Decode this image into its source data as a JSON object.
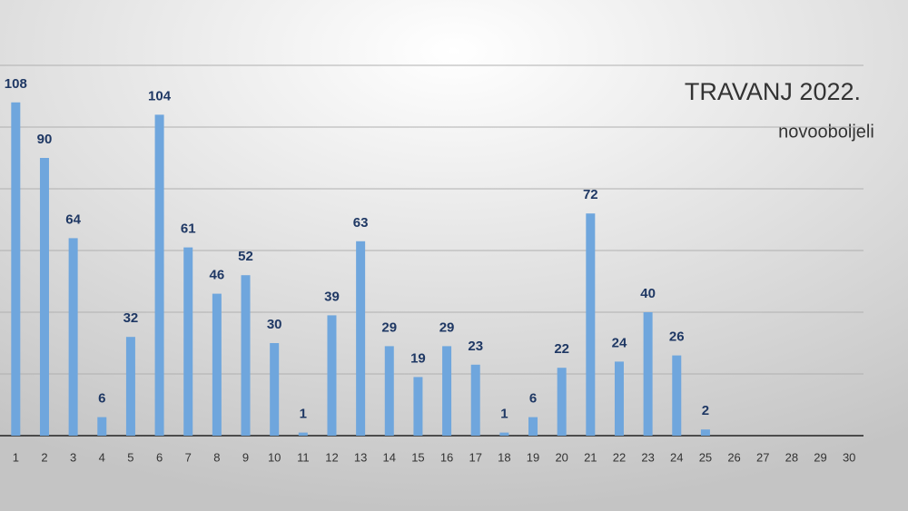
{
  "chart_data": {
    "type": "bar",
    "title": "TRAVANJ 2022.",
    "subtitle": "novooboljeli",
    "categories": [
      "1",
      "2",
      "3",
      "4",
      "5",
      "6",
      "7",
      "8",
      "9",
      "10",
      "11",
      "12",
      "13",
      "14",
      "15",
      "16",
      "17",
      "18",
      "19",
      "20",
      "21",
      "22",
      "23",
      "24",
      "25",
      "26",
      "27",
      "28",
      "29",
      "30"
    ],
    "values": [
      108,
      90,
      64,
      6,
      32,
      104,
      61,
      46,
      52,
      30,
      1,
      39,
      63,
      29,
      19,
      29,
      23,
      1,
      6,
      22,
      72,
      24,
      40,
      26,
      2,
      null,
      null,
      null,
      null,
      null
    ],
    "color": "#6fa6dd",
    "ylim": [
      0,
      120
    ],
    "yticks": [
      0,
      20,
      40,
      60,
      80,
      100,
      120
    ],
    "ytick_labels": false,
    "grid": true
  }
}
